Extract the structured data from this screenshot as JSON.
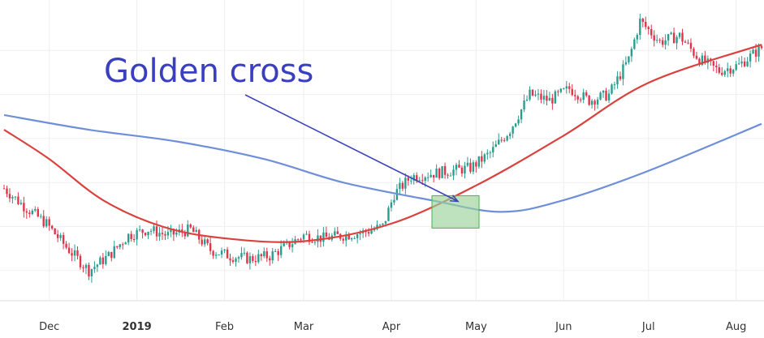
{
  "chart_data": {
    "type": "candlestick",
    "title": "",
    "xlabel": "",
    "ylabel": "",
    "x_ticks": [
      {
        "label": "Dec",
        "date": "2018-12-01",
        "bold": false
      },
      {
        "label": "2019",
        "date": "2019-01-01",
        "bold": true
      },
      {
        "label": "Feb",
        "date": "2019-02-01",
        "bold": false
      },
      {
        "label": "Mar",
        "date": "2019-03-01",
        "bold": false
      },
      {
        "label": "Apr",
        "date": "2019-04-01",
        "bold": false
      },
      {
        "label": "May",
        "date": "2019-05-01",
        "bold": false
      },
      {
        "label": "Jun",
        "date": "2019-06-01",
        "bold": false
      },
      {
        "label": "Jul",
        "date": "2019-07-01",
        "bold": false
      },
      {
        "label": "Aug",
        "date": "2019-08-01",
        "bold": false
      }
    ],
    "xlim": [
      "2018-11-15",
      "2019-08-10"
    ],
    "ylim": [
      0,
      100
    ],
    "grid": true,
    "price_path": [
      [
        "2018-11-15",
        38
      ],
      [
        "2018-11-22",
        32
      ],
      [
        "2018-11-30",
        26
      ],
      [
        "2018-12-07",
        18
      ],
      [
        "2018-12-15",
        10
      ],
      [
        "2018-12-22",
        15
      ],
      [
        "2018-12-29",
        22
      ],
      [
        "2019-01-05",
        24
      ],
      [
        "2019-01-12",
        22
      ],
      [
        "2019-01-20",
        24
      ],
      [
        "2019-01-27",
        17
      ],
      [
        "2019-02-03",
        15
      ],
      [
        "2019-02-10",
        14
      ],
      [
        "2019-02-17",
        15
      ],
      [
        "2019-02-24",
        19
      ],
      [
        "2019-03-01",
        22
      ],
      [
        "2019-03-08",
        21
      ],
      [
        "2019-03-15",
        22
      ],
      [
        "2019-03-22",
        23
      ],
      [
        "2019-03-29",
        25
      ],
      [
        "2019-04-02",
        36
      ],
      [
        "2019-04-08",
        42
      ],
      [
        "2019-04-15",
        43
      ],
      [
        "2019-04-22",
        44
      ],
      [
        "2019-04-29",
        45
      ],
      [
        "2019-05-06",
        50
      ],
      [
        "2019-05-13",
        58
      ],
      [
        "2019-05-20",
        70
      ],
      [
        "2019-05-27",
        68
      ],
      [
        "2019-06-03",
        72
      ],
      [
        "2019-06-10",
        68
      ],
      [
        "2019-06-17",
        70
      ],
      [
        "2019-06-24",
        82
      ],
      [
        "2019-06-28",
        95
      ],
      [
        "2019-07-05",
        88
      ],
      [
        "2019-07-12",
        90
      ],
      [
        "2019-07-19",
        82
      ],
      [
        "2019-07-26",
        78
      ],
      [
        "2019-08-02",
        80
      ],
      [
        "2019-08-10",
        86
      ]
    ],
    "series": [
      {
        "type": "line",
        "color": "#d9423f",
        "points": [
          [
            "2018-11-15",
            58
          ],
          [
            "2018-12-01",
            48
          ],
          [
            "2018-12-20",
            34
          ],
          [
            "2019-01-10",
            25
          ],
          [
            "2019-02-01",
            21
          ],
          [
            "2019-03-01",
            20
          ],
          [
            "2019-04-01",
            26
          ],
          [
            "2019-05-01",
            39
          ],
          [
            "2019-06-01",
            56
          ],
          [
            "2019-07-01",
            74
          ],
          [
            "2019-08-10",
            87
          ]
        ]
      },
      {
        "type": "line",
        "color": "#6f8fd9",
        "points": [
          [
            "2018-11-15",
            63
          ],
          [
            "2018-12-15",
            58
          ],
          [
            "2019-01-15",
            54
          ],
          [
            "2019-02-15",
            48
          ],
          [
            "2019-03-15",
            40
          ],
          [
            "2019-04-15",
            34
          ],
          [
            "2019-05-10",
            30
          ],
          [
            "2019-06-01",
            34
          ],
          [
            "2019-07-01",
            44
          ],
          [
            "2019-08-10",
            60
          ]
        ]
      }
    ],
    "annotations": [
      {
        "text": "Golden cross",
        "target_date": "2019-04-24",
        "target_value": 30
      }
    ],
    "colors": {
      "up": "#2a9d8f",
      "down": "#e0344a",
      "highlight": "#9ad39a",
      "arrow": "#3b46b8"
    }
  }
}
